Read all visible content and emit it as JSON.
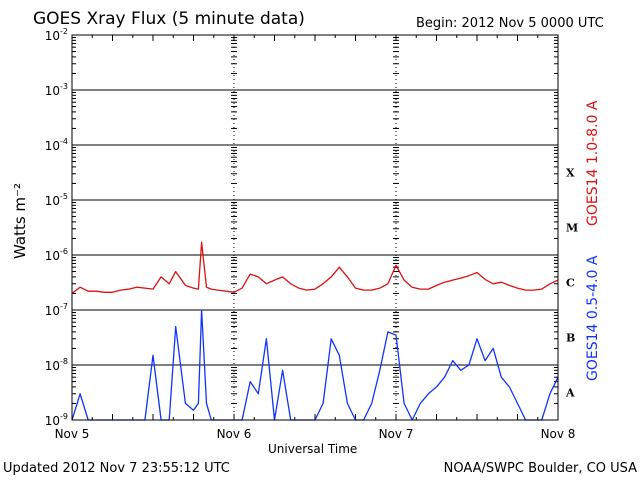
{
  "header": {
    "title": "GOES Xray Flux (5 minute data)",
    "begin": "Begin:  2012 Nov 5 0000 UTC"
  },
  "footer": {
    "updated": "Updated 2012 Nov  7 23:55:12 UTC",
    "credit": "NOAA/SWPC Boulder, CO USA"
  },
  "chart_data": {
    "type": "line",
    "ylabel": "Watts m⁻²",
    "xlabel": "Universal Time",
    "y_scale": "log",
    "ylim": [
      1e-09,
      0.01
    ],
    "y_ticks": [
      {
        "exp": -2,
        "base": "10",
        "sup": "-2"
      },
      {
        "exp": -3,
        "base": "10",
        "sup": "-3"
      },
      {
        "exp": -4,
        "base": "10",
        "sup": "-4"
      },
      {
        "exp": -5,
        "base": "10",
        "sup": "-5"
      },
      {
        "exp": -6,
        "base": "10",
        "sup": "-6"
      },
      {
        "exp": -7,
        "base": "10",
        "sup": "-7"
      },
      {
        "exp": -8,
        "base": "10",
        "sup": "-8"
      },
      {
        "exp": -9,
        "base": "10",
        "sup": "-9"
      }
    ],
    "xlim_days": [
      0,
      3
    ],
    "x_ticks": [
      {
        "day": 0,
        "label": "Nov 5"
      },
      {
        "day": 1,
        "label": "Nov 6"
      },
      {
        "day": 2,
        "label": "Nov 7"
      },
      {
        "day": 3,
        "label": "Nov 8"
      }
    ],
    "flare_classes": [
      {
        "label": "X",
        "exp": -4
      },
      {
        "label": "M",
        "exp": -5
      },
      {
        "label": "C",
        "exp": -6
      },
      {
        "label": "B",
        "exp": -7
      },
      {
        "label": "A",
        "exp": -8
      }
    ],
    "series": [
      {
        "name": "GOES14 1.0-8.0 A",
        "color": "#dd1111",
        "x_days": [
          0.0,
          0.05,
          0.1,
          0.15,
          0.2,
          0.25,
          0.3,
          0.35,
          0.4,
          0.45,
          0.5,
          0.55,
          0.6,
          0.64,
          0.7,
          0.75,
          0.78,
          0.8,
          0.83,
          0.86,
          0.9,
          0.95,
          1.0,
          1.05,
          1.1,
          1.15,
          1.2,
          1.25,
          1.3,
          1.35,
          1.4,
          1.45,
          1.5,
          1.55,
          1.6,
          1.65,
          1.7,
          1.75,
          1.8,
          1.85,
          1.9,
          1.95,
          2.0,
          2.05,
          2.1,
          2.15,
          2.2,
          2.25,
          2.3,
          2.35,
          2.4,
          2.45,
          2.5,
          2.55,
          2.6,
          2.65,
          2.7,
          2.75,
          2.8,
          2.85,
          2.9,
          2.95,
          3.0
        ],
        "values": [
          2e-07,
          2.6e-07,
          2.2e-07,
          2.2e-07,
          2.1e-07,
          2.1e-07,
          2.3e-07,
          2.4e-07,
          2.6e-07,
          2.5e-07,
          2.4e-07,
          4e-07,
          3e-07,
          5e-07,
          2.8e-07,
          2.5e-07,
          2.4e-07,
          1.7e-06,
          2.6e-07,
          2.4e-07,
          2.3e-07,
          2.2e-07,
          2.1e-07,
          2.5e-07,
          4.5e-07,
          4e-07,
          3e-07,
          3.5e-07,
          4e-07,
          3e-07,
          2.5e-07,
          2.3e-07,
          2.4e-07,
          3e-07,
          4e-07,
          6e-07,
          4e-07,
          2.5e-07,
          2.3e-07,
          2.3e-07,
          2.5e-07,
          3e-07,
          6.5e-07,
          3.5e-07,
          2.6e-07,
          2.4e-07,
          2.4e-07,
          2.8e-07,
          3.2e-07,
          3.5e-07,
          3.8e-07,
          4.2e-07,
          4.8e-07,
          3.6e-07,
          3e-07,
          3.2e-07,
          2.8e-07,
          2.5e-07,
          2.3e-07,
          2.3e-07,
          2.4e-07,
          3e-07,
          3.5e-07
        ]
      },
      {
        "name": "GOES14 0.5-4.0 A",
        "color": "#1133ff",
        "x_days": [
          0.0,
          0.05,
          0.1,
          0.15,
          0.2,
          0.25,
          0.3,
          0.35,
          0.4,
          0.45,
          0.5,
          0.55,
          0.6,
          0.64,
          0.7,
          0.75,
          0.78,
          0.8,
          0.83,
          0.86,
          0.9,
          0.95,
          1.0,
          1.05,
          1.1,
          1.15,
          1.2,
          1.25,
          1.3,
          1.35,
          1.4,
          1.45,
          1.5,
          1.55,
          1.6,
          1.65,
          1.7,
          1.75,
          1.8,
          1.85,
          1.9,
          1.95,
          2.0,
          2.05,
          2.1,
          2.15,
          2.2,
          2.25,
          2.3,
          2.35,
          2.4,
          2.45,
          2.5,
          2.55,
          2.6,
          2.65,
          2.7,
          2.75,
          2.8,
          2.85,
          2.9,
          2.95,
          3.0
        ],
        "values": [
          1e-09,
          3e-09,
          1e-09,
          1e-09,
          1e-09,
          1e-09,
          1e-09,
          1e-09,
          1e-09,
          1e-09,
          1.5e-08,
          1e-09,
          1e-09,
          5e-08,
          2e-09,
          1.5e-09,
          2e-09,
          1e-07,
          2e-09,
          1e-09,
          1e-09,
          1e-09,
          1e-09,
          1e-09,
          5e-09,
          3e-09,
          3e-08,
          1e-09,
          8e-09,
          1e-09,
          1e-09,
          1e-09,
          1e-09,
          2e-09,
          3e-08,
          1.5e-08,
          2e-09,
          1e-09,
          1e-09,
          2e-09,
          8e-09,
          4e-08,
          3.5e-08,
          2e-09,
          1e-09,
          2e-09,
          3e-09,
          4e-09,
          6e-09,
          1.2e-08,
          8e-09,
          1e-08,
          3e-08,
          1.2e-08,
          2e-08,
          6e-09,
          4e-09,
          2e-09,
          1e-09,
          1e-09,
          1e-09,
          3e-09,
          6e-09
        ]
      }
    ]
  }
}
